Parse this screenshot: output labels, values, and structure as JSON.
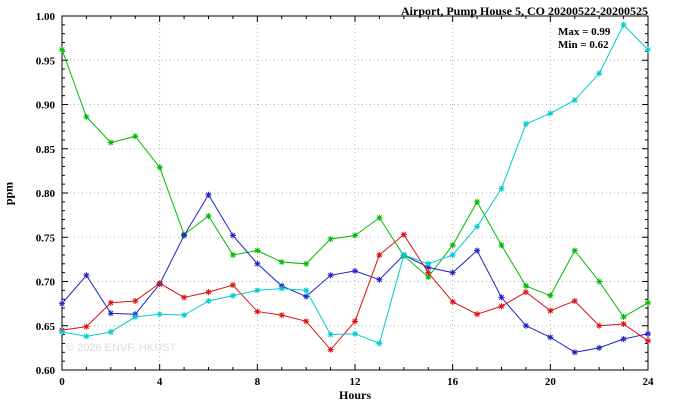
{
  "title": "Airport, Pump House 5, CO 20200522-20200525",
  "annotation": {
    "max_label": "Max = 0.99",
    "min_label": "Min = 0.62"
  },
  "watermark": "© 2026 ENVF, HKUST",
  "chart_data": {
    "type": "line",
    "title": "Airport, Pump House 5, CO 20200522-20200525",
    "xlabel": "Hours",
    "ylabel": "ppm",
    "xlim": [
      0,
      24
    ],
    "ylim": [
      0.6,
      1.0
    ],
    "xticks": [
      0,
      4,
      8,
      12,
      16,
      20,
      24
    ],
    "yticks": [
      0.6,
      0.65,
      0.7,
      0.75,
      0.8,
      0.85,
      0.9,
      0.95,
      1.0
    ],
    "grid": "dotted",
    "legend_position": "none",
    "marker": "asterisk",
    "x": [
      0,
      1,
      2,
      3,
      4,
      5,
      6,
      7,
      8,
      9,
      10,
      11,
      12,
      13,
      14,
      15,
      16,
      17,
      18,
      19,
      20,
      21,
      22,
      23,
      24
    ],
    "series": [
      {
        "name": "green",
        "color": "#00bb00",
        "values": [
          0.962,
          0.886,
          0.857,
          0.864,
          0.829,
          0.753,
          0.774,
          0.73,
          0.735,
          0.722,
          0.72,
          0.748,
          0.752,
          0.772,
          0.729,
          0.705,
          0.741,
          0.79,
          0.741,
          0.695,
          0.684,
          0.735,
          0.7,
          0.66,
          0.676
        ]
      },
      {
        "name": "blue",
        "color": "#2222cc",
        "values": [
          0.675,
          0.707,
          0.664,
          0.663,
          0.697,
          0.752,
          0.798,
          0.752,
          0.72,
          0.695,
          0.683,
          0.707,
          0.712,
          0.702,
          0.73,
          0.716,
          0.71,
          0.735,
          0.682,
          0.65,
          0.637,
          0.62,
          0.625,
          0.635,
          0.641
        ]
      },
      {
        "name": "red",
        "color": "#dd1111",
        "values": [
          0.645,
          0.649,
          0.676,
          0.678,
          0.698,
          0.682,
          0.688,
          0.696,
          0.666,
          0.662,
          0.655,
          0.623,
          0.655,
          0.73,
          0.753,
          0.71,
          0.677,
          0.663,
          0.672,
          0.688,
          0.667,
          0.678,
          0.65,
          0.652,
          0.633
        ]
      },
      {
        "name": "cyan",
        "color": "#00cccc",
        "values": [
          0.643,
          0.638,
          0.643,
          0.66,
          0.663,
          0.662,
          0.678,
          0.684,
          0.69,
          0.692,
          0.69,
          0.64,
          0.641,
          0.63,
          0.73,
          0.72,
          0.73,
          0.762,
          0.805,
          0.878,
          0.89,
          0.905,
          0.935,
          0.99,
          0.962
        ]
      }
    ]
  }
}
